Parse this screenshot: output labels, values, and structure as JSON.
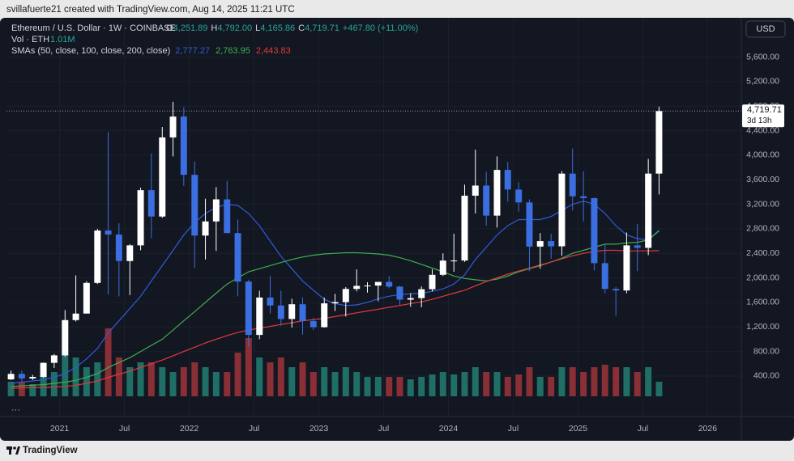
{
  "header": {
    "credit": "svillafuerte21 created with TradingView.com, Aug 14, 2025 11:21 UTC"
  },
  "footer": {
    "brand": "TradingView"
  },
  "currency": "USD",
  "chart_data": {
    "type": "candlestick",
    "title": "Ethereum / U.S. Dollar · 1W · COINBASE",
    "ohlc_legend": [
      {
        "label": "O",
        "value": "4,251.89"
      },
      {
        "label": "H",
        "value": "4,792.00"
      },
      {
        "label": "L",
        "value": "4,165.86"
      },
      {
        "label": "C",
        "value": "4,719.71"
      }
    ],
    "change": "+467.80 (+11.00%)",
    "volume_legend": {
      "label": "Vol · ETH",
      "value": "1.01M"
    },
    "sma_legend": {
      "label": "SMAs (50, close, 100, close, 200, close)",
      "values": [
        "2,777.27",
        "2,763.95",
        "2,443.83"
      ]
    },
    "price_tag": {
      "value": 4719.71,
      "label": "4,719.71",
      "countdown": "3d 13h"
    },
    "up_color": "#ffffff",
    "down_color": "#3b6ee0",
    "volume_up_color": "#1f6f67",
    "volume_down_color": "#8a2f35",
    "grid": true,
    "x": [
      2020.625,
      2020.708,
      2020.792,
      2020.875,
      2020.958,
      2021.042,
      2021.125,
      2021.208,
      2021.292,
      2021.375,
      2021.458,
      2021.542,
      2021.625,
      2021.708,
      2021.792,
      2021.875,
      2021.958,
      2022.042,
      2022.125,
      2022.208,
      2022.292,
      2022.375,
      2022.458,
      2022.542,
      2022.625,
      2022.708,
      2022.792,
      2022.875,
      2022.958,
      2023.042,
      2023.125,
      2023.208,
      2023.292,
      2023.375,
      2023.458,
      2023.542,
      2023.625,
      2023.708,
      2023.792,
      2023.875,
      2023.958,
      2024.042,
      2024.125,
      2024.208,
      2024.292,
      2024.375,
      2024.458,
      2024.542,
      2024.625,
      2024.708,
      2024.792,
      2024.875,
      2024.958,
      2025.042,
      2025.125,
      2025.208,
      2025.292,
      2025.375,
      2025.458,
      2025.542,
      2025.625
    ],
    "open": [
      345,
      435,
      360,
      386,
      615,
      737,
      1312,
      1418,
      1918,
      2772,
      2707,
      2275,
      2530,
      3430,
      3000,
      4290,
      4630,
      3680,
      2690,
      2920,
      3280,
      2730,
      1940,
      1070,
      1680,
      1550,
      1330,
      1570,
      1295,
      1196,
      1585,
      1605,
      1820,
      1870,
      1875,
      1934,
      1857,
      1645,
      1670,
      1815,
      2050,
      2282,
      2283,
      3340,
      3505,
      3015,
      3760,
      3440,
      3230,
      2510,
      2600,
      2515,
      3700,
      3330,
      3300,
      2240,
      1820,
      1795,
      2530,
      2490,
      3700
    ],
    "high": [
      490,
      488,
      420,
      620,
      760,
      1475,
      2040,
      1945,
      2800,
      4380,
      2890,
      2550,
      3470,
      4030,
      4460,
      4870,
      4780,
      3900,
      3290,
      3480,
      3580,
      2950,
      1970,
      1790,
      2030,
      1790,
      1660,
      1680,
      1350,
      1680,
      1740,
      1850,
      2140,
      1930,
      1930,
      2030,
      1870,
      1750,
      1860,
      2140,
      2400,
      2720,
      3520,
      4090,
      3730,
      3980,
      3890,
      3560,
      3280,
      2730,
      2720,
      3740,
      4110,
      3740,
      3310,
      2550,
      1850,
      2740,
      2880,
      3940,
      4792
    ],
    "low": [
      335,
      310,
      335,
      370,
      530,
      715,
      1290,
      1440,
      1900,
      1730,
      1700,
      1720,
      2450,
      2650,
      2980,
      3980,
      3500,
      2160,
      2300,
      2440,
      2780,
      1700,
      880,
      1000,
      1420,
      1220,
      1190,
      1075,
      1150,
      1190,
      1460,
      1370,
      1780,
      1760,
      1620,
      1830,
      1550,
      1530,
      1520,
      1780,
      2030,
      2100,
      2260,
      3050,
      2850,
      2820,
      3240,
      3080,
      2110,
      2150,
      2310,
      2360,
      3100,
      2920,
      2120,
      1750,
      1385,
      1750,
      2110,
      2370,
      3360
    ],
    "close": [
      435,
      360,
      386,
      615,
      737,
      1312,
      1418,
      1918,
      2772,
      2707,
      2275,
      2530,
      3430,
      3000,
      4290,
      4630,
      3680,
      2690,
      2920,
      3280,
      2730,
      1940,
      1070,
      1680,
      1550,
      1330,
      1570,
      1295,
      1196,
      1585,
      1605,
      1820,
      1870,
      1875,
      1934,
      1857,
      1645,
      1670,
      1815,
      2050,
      2282,
      2283,
      3340,
      3505,
      3015,
      3760,
      3440,
      3230,
      2510,
      2600,
      2515,
      3700,
      3330,
      3300,
      2240,
      1820,
      1795,
      2530,
      2490,
      3700,
      4719.71
    ],
    "volume": [
      3,
      3,
      2.5,
      4,
      5,
      9,
      8,
      6,
      7,
      14,
      8,
      6,
      7,
      7,
      6,
      5,
      6,
      7,
      6,
      5,
      5,
      9,
      12,
      8,
      7,
      8,
      6,
      7,
      5,
      6,
      5,
      6,
      5,
      4,
      4,
      4,
      4,
      3.5,
      4,
      4.5,
      5,
      4.5,
      5,
      6,
      5,
      5,
      4,
      4.5,
      6,
      4,
      4,
      6,
      6,
      5,
      6,
      6.5,
      6,
      6,
      5,
      6,
      3
    ],
    "vlim": [
      0,
      20
    ],
    "series": [
      {
        "name": "SMA 50",
        "color": "#2f5bd8",
        "values": [
          280,
          300,
          320,
          340,
          380,
          440,
          540,
          680,
          850,
          1100,
          1300,
          1500,
          1700,
          1950,
          2200,
          2450,
          2700,
          2900,
          3050,
          3150,
          3200,
          3180,
          3050,
          2850,
          2600,
          2350,
          2150,
          1950,
          1800,
          1650,
          1580,
          1550,
          1560,
          1600,
          1660,
          1700,
          1730,
          1740,
          1750,
          1780,
          1820,
          1900,
          2050,
          2300,
          2500,
          2700,
          2850,
          2950,
          2950,
          2950,
          3000,
          3100,
          3200,
          3250,
          3200,
          3050,
          2850,
          2700,
          2640,
          2620,
          2777.27
        ]
      },
      {
        "name": "SMA 100",
        "color": "#3fae4f",
        "values": [
          230,
          240,
          250,
          260,
          280,
          300,
          330,
          380,
          440,
          540,
          620,
          700,
          800,
          900,
          1000,
          1150,
          1300,
          1450,
          1600,
          1750,
          1900,
          2000,
          2100,
          2150,
          2200,
          2250,
          2300,
          2340,
          2370,
          2390,
          2400,
          2410,
          2410,
          2400,
          2390,
          2370,
          2330,
          2280,
          2220,
          2160,
          2100,
          2030,
          1990,
          1970,
          1950,
          1980,
          2030,
          2100,
          2150,
          2200,
          2260,
          2320,
          2400,
          2450,
          2500,
          2550,
          2550,
          2570,
          2580,
          2620,
          2763.95
        ]
      },
      {
        "name": "SMA 200",
        "color": "#e0393e",
        "values": [
          200,
          205,
          210,
          215,
          220,
          230,
          250,
          280,
          320,
          380,
          430,
          480,
          540,
          600,
          660,
          730,
          800,
          870,
          940,
          1000,
          1060,
          1110,
          1150,
          1180,
          1210,
          1240,
          1270,
          1300,
          1320,
          1340,
          1370,
          1400,
          1430,
          1460,
          1490,
          1520,
          1550,
          1580,
          1610,
          1650,
          1700,
          1750,
          1800,
          1870,
          1940,
          2000,
          2060,
          2110,
          2160,
          2210,
          2260,
          2310,
          2360,
          2400,
          2430,
          2450,
          2450,
          2440,
          2440,
          2440,
          2443.83
        ]
      }
    ],
    "xlim": [
      2020.59,
      2026.26
    ],
    "xticks": [
      2021,
      {
        "value": 2021.5,
        "label": "Jul"
      },
      2022,
      {
        "value": 2022.5,
        "label": "Jul"
      },
      2023,
      {
        "value": 2023.5,
        "label": "Jul"
      },
      2024,
      {
        "value": 2024.5,
        "label": "Jul"
      },
      2025,
      {
        "value": 2025.5,
        "label": "Jul"
      },
      2026
    ],
    "ylim": [
      -260,
      6240
    ],
    "yticks": [
      {
        "value": 400,
        "label": "400.00"
      },
      {
        "value": 800,
        "label": "800.00"
      },
      {
        "value": 1200,
        "label": "1,200.00"
      },
      {
        "value": 1600,
        "label": "1,600.00"
      },
      {
        "value": 2000,
        "label": "2,000.00"
      },
      {
        "value": 2400,
        "label": "2,400.00"
      },
      {
        "value": 2800,
        "label": "2,800.00"
      },
      {
        "value": 3200,
        "label": "3,200.00"
      },
      {
        "value": 3600,
        "label": "3,600.00"
      },
      {
        "value": 4000,
        "label": "4,000.00"
      },
      {
        "value": 4400,
        "label": "4,400.00"
      },
      {
        "value": 4800,
        "label": "4,800.00"
      },
      {
        "value": 5200,
        "label": "5,200.00"
      },
      {
        "value": 5600,
        "label": "5,600.00"
      }
    ]
  }
}
